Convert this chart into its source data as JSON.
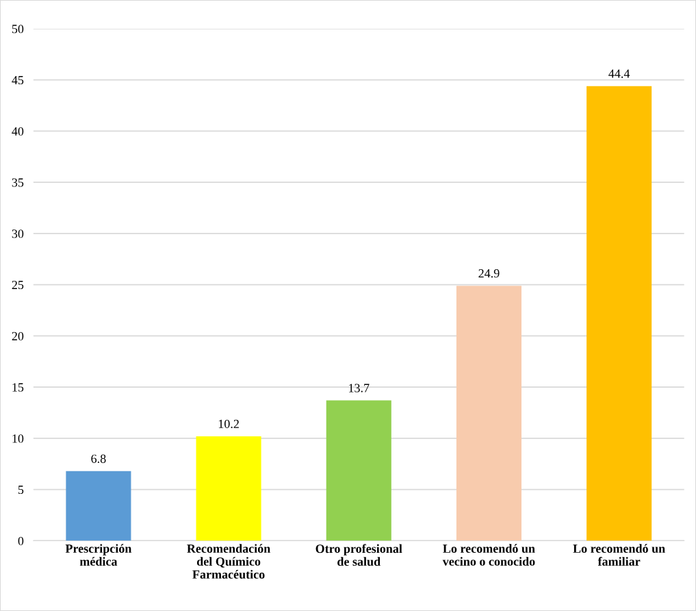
{
  "chart_data": {
    "type": "bar",
    "categories": [
      "Prescripción\nmédica",
      "Recomendación\ndel Químico\nFarmacéutico",
      "Otro profesional\nde salud",
      "Lo recomendó un\nvecino o conocido",
      "Lo recomendó un\nfamiliar"
    ],
    "values": [
      6.8,
      10.2,
      13.7,
      24.9,
      44.4
    ],
    "colors": [
      "#5b9bd5",
      "#ffff00",
      "#92d050",
      "#f8cbad",
      "#ffc000"
    ],
    "ylim": [
      0,
      50
    ],
    "yticks": [
      0,
      5,
      10,
      15,
      20,
      25,
      30,
      35,
      40,
      45,
      50
    ],
    "grid": "y",
    "data_labels": true
  }
}
